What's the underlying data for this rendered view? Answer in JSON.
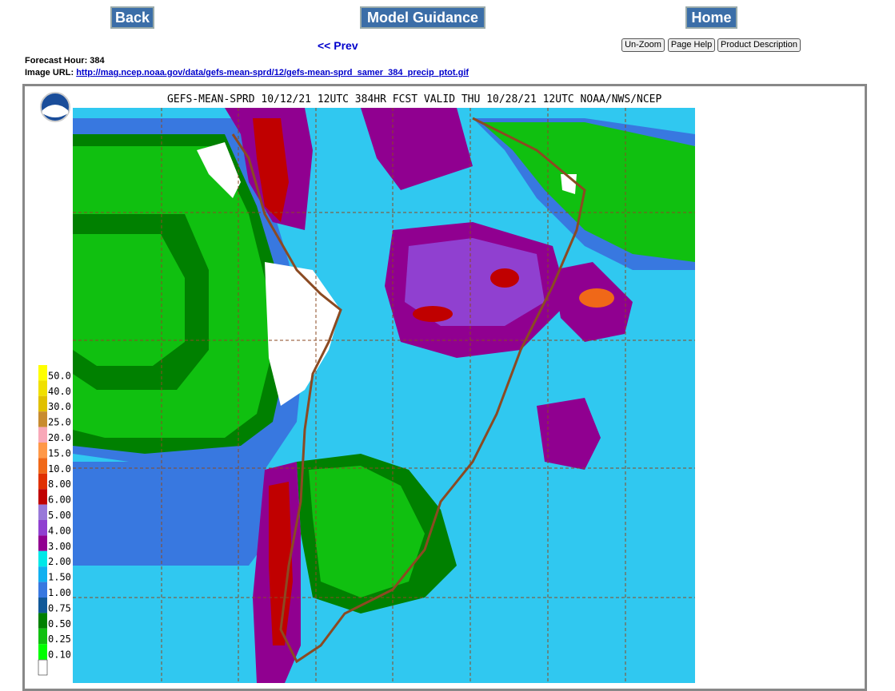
{
  "nav": {
    "back": "Back",
    "model_guidance": "Model Guidance",
    "home": "Home",
    "prev": "<< Prev"
  },
  "tools": {
    "unzoom": "Un-Zoom",
    "page_help": "Page Help",
    "product_description": "Product Description"
  },
  "info": {
    "forecast_hour": "Forecast Hour: 384",
    "image_url_label": "Image URL:",
    "image_url": "http://mag.ncep.noaa.gov/data/gefs-mean-sprd/12/gefs-mean-sprd_samer_384_precip_ptot.gif"
  },
  "map": {
    "title": "GEFS-MEAN-SPRD 10/12/21 12UTC 384HR FCST VALID THU 10/28/21 12UTC NOAA/NWS/NCEP",
    "legend": [
      {
        "label": "50.0",
        "color": "#ffff00"
      },
      {
        "label": "40.0",
        "color": "#f0e000"
      },
      {
        "label": "30.0",
        "color": "#e0c000"
      },
      {
        "label": "25.0",
        "color": "#c88c30"
      },
      {
        "label": "20.0",
        "color": "#f8a8b8"
      },
      {
        "label": "15.0",
        "color": "#ff9848"
      },
      {
        "label": "10.0",
        "color": "#f06818"
      },
      {
        "label": "8.00",
        "color": "#e03000"
      },
      {
        "label": "6.00",
        "color": "#c00000"
      },
      {
        "label": "5.00",
        "color": "#9878d8"
      },
      {
        "label": "4.00",
        "color": "#9040d0"
      },
      {
        "label": "3.00",
        "color": "#900090"
      },
      {
        "label": "2.00",
        "color": "#00e8e8"
      },
      {
        "label": "1.50",
        "color": "#10b0f0"
      },
      {
        "label": "1.00",
        "color": "#3878e0"
      },
      {
        "label": "0.75",
        "color": "#105898"
      },
      {
        "label": "0.50",
        "color": "#008000"
      },
      {
        "label": "0.25",
        "color": "#10c010"
      },
      {
        "label": "0.10",
        "color": "#00ff00"
      }
    ]
  }
}
